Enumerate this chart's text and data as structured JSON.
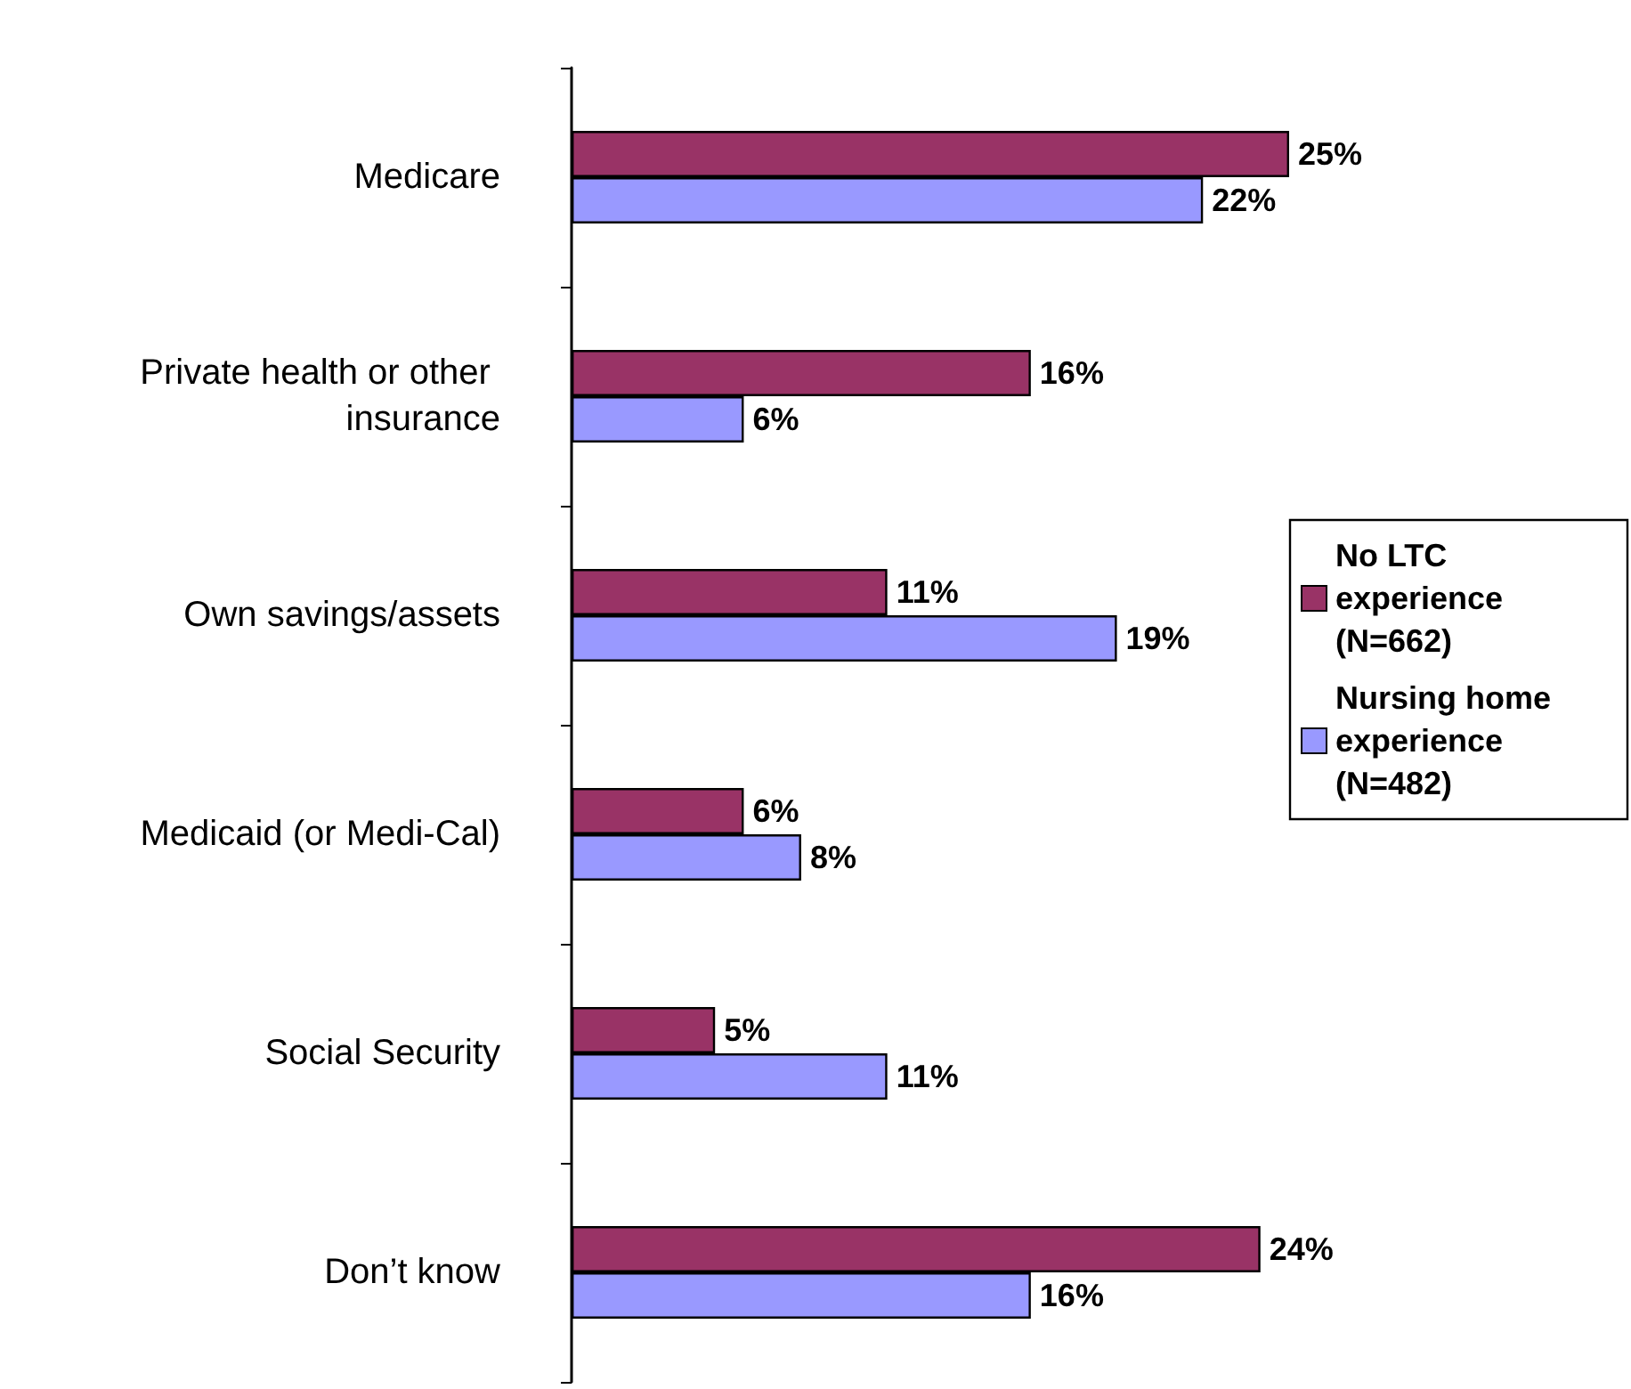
{
  "chart_data": {
    "type": "bar",
    "orientation": "horizontal",
    "categories": [
      "Medicare",
      "Private health or other insurance",
      "Own savings/assets",
      "Medicaid (or Medi-Cal)",
      "Social Security",
      "Don’t know"
    ],
    "series": [
      {
        "name": "No LTC experience (N=662)",
        "color": "#993366",
        "values": [
          25,
          16,
          11,
          6,
          5,
          24
        ],
        "value_labels": [
          "25%",
          "16%",
          "11%",
          "6%",
          "5%",
          "24%"
        ]
      },
      {
        "name": "Nursing home experience (N=482)",
        "color": "#9999ff",
        "values": [
          22,
          6,
          19,
          8,
          11,
          16
        ],
        "value_labels": [
          "22%",
          "6%",
          "19%",
          "8%",
          "11%",
          "16%"
        ]
      }
    ],
    "legend": "right"
  }
}
